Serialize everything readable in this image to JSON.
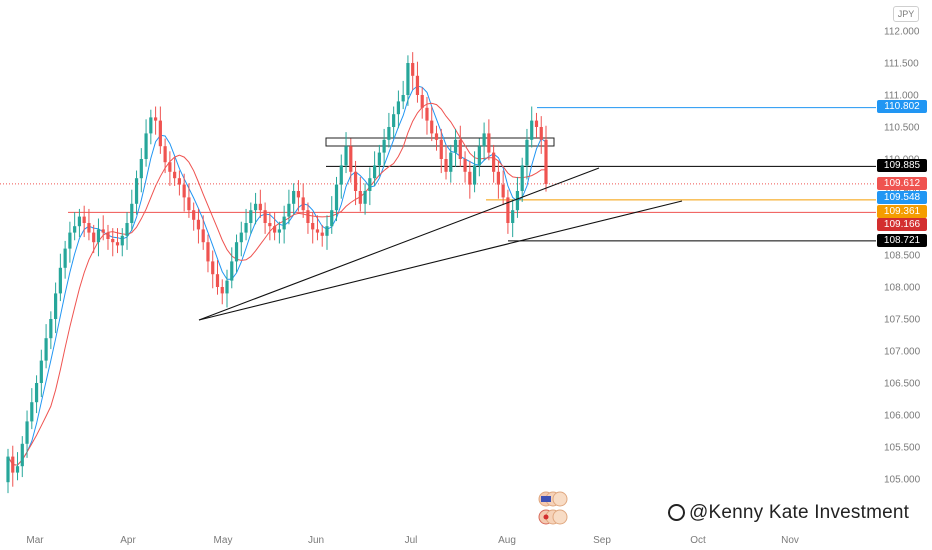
{
  "currency": "JPY",
  "watermark": "@Kenny Kate Investment",
  "chart_data": {
    "type": "candlestick",
    "y_ticks": [
      "112.000",
      "111.500",
      "111.000",
      "110.500",
      "110.000",
      "109.500",
      "109.000",
      "108.500",
      "108.000",
      "107.500",
      "107.000",
      "106.500",
      "106.000",
      "105.500",
      "105.000"
    ],
    "ylim": [
      104.85,
      112.1
    ],
    "x_ticks": [
      "Mar",
      "Apr",
      "May",
      "Jun",
      "Jul",
      "Aug",
      "Sep",
      "Oct",
      "Nov"
    ],
    "price_labels": [
      {
        "value": 110.802,
        "label": "110.802",
        "color": "#2196f3"
      },
      {
        "value": 109.885,
        "label": "109.885",
        "color": "#000000"
      },
      {
        "value": 109.612,
        "label": "109.612",
        "color": "#ef5350"
      },
      {
        "value": 109.548,
        "label": "109.548",
        "color": "#2196f3"
      },
      {
        "value": 109.361,
        "label": "109.361",
        "color": "#f59d00"
      },
      {
        "value": 109.166,
        "label": "109.166",
        "color": "#d32f2f"
      },
      {
        "value": 108.721,
        "label": "108.721",
        "color": "#000000"
      }
    ],
    "horizontal_levels": [
      {
        "value": 110.802,
        "color": "#2196f3",
        "from": "Aug"
      },
      {
        "value": 109.885,
        "color": "#000000",
        "from": "Jun"
      },
      {
        "value": 109.612,
        "color": "#ef5350",
        "style": "dotted",
        "from": "start"
      },
      {
        "value": 109.361,
        "color": "#f59d00",
        "from": "Aug"
      },
      {
        "value": 109.166,
        "color": "#ef5350",
        "from": "Mar"
      },
      {
        "value": 108.721,
        "color": "#000000",
        "from": "Aug"
      }
    ],
    "trendlines": [
      {
        "from": [
          0.22,
          107.5
        ],
        "to": [
          0.66,
          109.88
        ]
      },
      {
        "from": [
          0.22,
          107.5
        ],
        "to": [
          0.75,
          109.46
        ]
      }
    ],
    "candles_close": [
      105.35,
      105.1,
      105.2,
      105.55,
      105.9,
      106.2,
      106.5,
      106.85,
      107.2,
      107.5,
      107.9,
      108.3,
      108.6,
      108.85,
      108.95,
      109.1,
      109.0,
      108.85,
      108.7,
      108.9,
      108.85,
      108.75,
      108.7,
      108.65,
      108.8,
      109.0,
      109.3,
      109.7,
      110.0,
      110.4,
      110.65,
      110.6,
      110.2,
      109.95,
      109.8,
      109.7,
      109.6,
      109.4,
      109.2,
      109.05,
      108.9,
      108.7,
      108.4,
      108.2,
      108.0,
      107.9,
      108.1,
      108.4,
      108.7,
      108.85,
      109.0,
      109.2,
      109.3,
      109.2,
      109.0,
      108.95,
      108.85,
      108.9,
      109.1,
      109.3,
      109.5,
      109.4,
      109.2,
      109.0,
      108.9,
      108.85,
      108.8,
      108.95,
      109.2,
      109.6,
      109.9,
      110.2,
      109.8,
      109.5,
      109.3,
      109.5,
      109.7,
      109.9,
      110.1,
      110.3,
      110.5,
      110.7,
      110.9,
      111.0,
      111.5,
      111.3,
      111.0,
      110.8,
      110.6,
      110.4,
      110.3,
      110.0,
      109.8,
      110.1,
      110.3,
      110.0,
      109.8,
      109.6,
      109.9,
      110.2,
      110.4,
      110.1,
      109.8,
      109.6,
      109.4,
      109.0,
      109.2,
      109.5,
      109.9,
      110.3,
      110.6,
      110.5,
      110.3,
      109.61
    ]
  }
}
